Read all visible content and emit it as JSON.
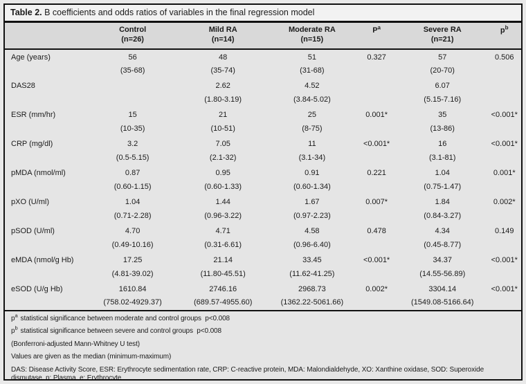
{
  "title": {
    "label": "Table 2.",
    "text": "B coefficients and odds ratios of variables in the final regression model"
  },
  "colors": {
    "page_bg": "#e9e9e9",
    "title_bg": "#f2f2f2",
    "header_bg": "#d9d9d9",
    "body_bg": "#e5e5e5",
    "border": "#111111",
    "text": "#1a1a1a"
  },
  "header": {
    "variable": "",
    "control1": "Control",
    "control2": "(n=26)",
    "mild1": "Mild RA",
    "mild2": "(n=14)",
    "moderate1": "Moderate RA",
    "moderate2": "(n=15)",
    "pa_base": "P",
    "pa_sup": "a",
    "severe1": "Severe RA",
    "severe2": "(n=21)",
    "pb_base": "p",
    "pb_sup": "b"
  },
  "table": {
    "rows": [
      {
        "variable": "Age (years)",
        "control": "56",
        "control_range": "(35-68)",
        "mild": "48",
        "mild_range": "(35-74)",
        "moderate": "51",
        "moderate_range": "(31-68)",
        "pa": "0.327",
        "severe": "57",
        "severe_range": "(20-70)",
        "pb": "0.506"
      },
      {
        "variable": "DAS28",
        "control": "",
        "control_range": "",
        "mild": "2.62",
        "mild_range": "(1.80-3.19)",
        "moderate": "4.52",
        "moderate_range": "(3.84-5.02)",
        "pa": "",
        "severe": "6.07",
        "severe_range": "(5.15-7.16)",
        "pb": ""
      },
      {
        "variable": "ESR (mm/hr)",
        "control": "15",
        "control_range": "(10-35)",
        "mild": "21",
        "mild_range": "(10-51)",
        "moderate": "25",
        "moderate_range": "(8-75)",
        "pa": "0.001*",
        "severe": "35",
        "severe_range": "(13-86)",
        "pb": "<0.001*"
      },
      {
        "variable": "CRP (mg/dl)",
        "control": "3.2",
        "control_range": "(0.5-5.15)",
        "mild": "7.05",
        "mild_range": "(2.1-32)",
        "moderate": "11",
        "moderate_range": "(3.1-34)",
        "pa": "<0.001*",
        "severe": "16",
        "severe_range": "(3.1-81)",
        "pb": "<0.001*"
      },
      {
        "variable": "pMDA (nmol/ml)",
        "control": "0.87",
        "control_range": "(0.60-1.15)",
        "mild": "0.95",
        "mild_range": "(0.60-1.33)",
        "moderate": "0.91",
        "moderate_range": "(0.60-1.34)",
        "pa": "0.221",
        "severe": "1.04",
        "severe_range": "(0.75-1.47)",
        "pb": "0.001*"
      },
      {
        "variable": "pXO (U/ml)",
        "control": "1.04",
        "control_range": "(0.71-2.28)",
        "mild": "1.44",
        "mild_range": "(0.96-3.22)",
        "moderate": "1.67",
        "moderate_range": "(0.97-2.23)",
        "pa": "0.007*",
        "severe": "1.84",
        "severe_range": "(0.84-3.27)",
        "pb": "0.002*"
      },
      {
        "variable": "pSOD (U/ml)",
        "control": "4.70",
        "control_range": "(0.49-10.16)",
        "mild": "4.71",
        "mild_range": "(0.31-6.61)",
        "moderate": "4.58",
        "moderate_range": "(0.96-6.40)",
        "pa": "0.478",
        "severe": "4.34",
        "severe_range": "(0.45-8.77)",
        "pb": "0.149"
      },
      {
        "variable": "eMDA (nmol/g Hb)",
        "control": "17.25",
        "control_range": "(4.81-39.02)",
        "mild": "21.14",
        "mild_range": "(11.80-45.51)",
        "moderate": "33.45",
        "moderate_range": "(11.62-41.25)",
        "pa": "<0.001*",
        "severe": "34.37",
        "severe_range": "(14.55-56.89)",
        "pb": "<0.001*"
      },
      {
        "variable": "eSOD (U/g Hb)",
        "control": "1610.84",
        "control_range": "(758.02-4929.37)",
        "mild": "2746.16",
        "mild_range": "(689.57-4955.60)",
        "moderate": "2968.73",
        "moderate_range": "(1362.22-5061.66)",
        "pa": "0.002*",
        "severe": "3304.14",
        "severe_range": "(1549.08-5166.64)",
        "pb": "<0.001*"
      }
    ]
  },
  "footnotes": [
    {
      "base": "p",
      "sup": "a",
      "text": "statistical significance between moderate and control groups  p<0.008"
    },
    {
      "base": "p",
      "sup": "b",
      "text": "statistical significance between severe and control groups  p<0.008"
    },
    {
      "text": "(Bonferroni-adjusted Mann-Whitney U test)"
    },
    {
      "text": "Values are given as the median (minimum-maximum)"
    },
    {
      "text": "DAS: Disease Activity Score, ESR: Erythrocyte sedimentation rate, CRP: C-reactive protein, MDA: Malondialdehyde, XO: Xanthine oxidase, SOD: Superoxide dismutase, p: Plasma, e: Erythrocyte"
    }
  ]
}
